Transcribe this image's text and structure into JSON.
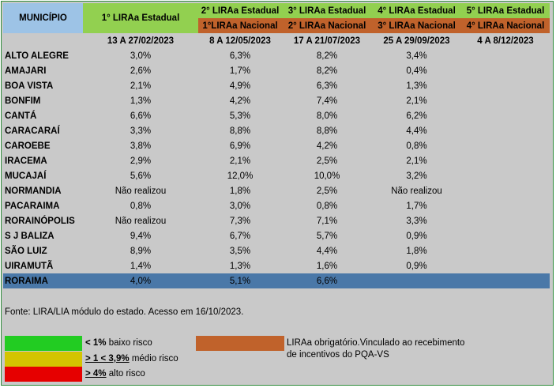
{
  "header": {
    "municipio": "MUNICÍPIO",
    "cycles": [
      {
        "estadual": "1° LIRAa Estadual",
        "nacional": "",
        "date": "13 A 27/02/2023"
      },
      {
        "estadual": "2° LIRAa Estadual",
        "nacional": "1°LIRAa Nacional",
        "date": "8 A 12/05/2023"
      },
      {
        "estadual": "3° LIRAa Estadual",
        "nacional": "2° LIRAa Nacional",
        "date": "17 A 21/07/2023"
      },
      {
        "estadual": "4° LIRAa Estadual",
        "nacional": "3° LIRAa Nacional",
        "date": "25 A 29/09/2023"
      },
      {
        "estadual": "5° LIRAa Estadual",
        "nacional": "4° LIRAa Nacional",
        "date": "4 A 8/12/2023"
      }
    ]
  },
  "rows": [
    {
      "name": "ALTO ALEGRE",
      "values": [
        "3,0%",
        "6,3%",
        "8,2%",
        "3,4%",
        ""
      ]
    },
    {
      "name": "AMAJARI",
      "values": [
        "2,6%",
        "1,7%",
        "8,2%",
        "0,4%",
        ""
      ]
    },
    {
      "name": "BOA VISTA",
      "values": [
        "2,1%",
        "4,9%",
        "6,3%",
        "1,3%",
        ""
      ]
    },
    {
      "name": "BONFIM",
      "values": [
        "1,3%",
        "4,2%",
        "7,4%",
        "2,1%",
        ""
      ]
    },
    {
      "name": "CANTÁ",
      "values": [
        "6,6%",
        "5,3%",
        "8,0%",
        "6,2%",
        ""
      ]
    },
    {
      "name": "CARACARAÍ",
      "values": [
        "3,3%",
        "8,8%",
        "8,8%",
        "4,4%",
        ""
      ]
    },
    {
      "name": "CAROEBE",
      "values": [
        "3,8%",
        "6,9%",
        "4,2%",
        "0,8%",
        ""
      ]
    },
    {
      "name": "IRACEMA",
      "values": [
        "2,9%",
        "2,1%",
        "2,5%",
        "2,1%",
        ""
      ]
    },
    {
      "name": "MUCAJAÍ",
      "values": [
        "5,6%",
        "12,0%",
        "10,0%",
        "3,2%",
        ""
      ]
    },
    {
      "name": "NORMANDIA",
      "values": [
        "Não realizou",
        "1,8%",
        "2,5%",
        "Não realizou",
        ""
      ]
    },
    {
      "name": "PACARAIMA",
      "values": [
        "0,8%",
        "3,0%",
        "0,8%",
        "1,7%",
        ""
      ]
    },
    {
      "name": "RORAINÓPOLIS",
      "values": [
        "Não realizou",
        "7,3%",
        "7,1%",
        "3,3%",
        ""
      ]
    },
    {
      "name": "S J BALIZA",
      "values": [
        "9,4%",
        "6,7%",
        "5,7%",
        "0,9%",
        ""
      ]
    },
    {
      "name": "SÃO LUIZ",
      "values": [
        "8,9%",
        "3,5%",
        "4,4%",
        "1,8%",
        ""
      ]
    },
    {
      "name": "UIRAMUTÃ",
      "values": [
        "1,4%",
        "1,3%",
        "1,6%",
        "0,9%",
        ""
      ]
    }
  ],
  "total": {
    "name": "RORAIMA",
    "values": [
      "4,0%",
      "5,1%",
      "6,6%",
      "",
      ""
    ]
  },
  "fonte": "Fonte: LIRA/LIA módulo do estado. Acesso em 16/10/2023.",
  "legend": {
    "low_prefix": "< 1%",
    "low_text": " baixo risco",
    "mid_prefix": "> 1 < 3,9%",
    "mid_text": " médio risco",
    "high_prefix": "> 4%",
    "high_text": "  alto risco",
    "obrigatorio_text": "LIRAa obrigatório.Vinculado ao recebimento de incentivos do PQA-VS"
  },
  "colors": {
    "header_municipio": "#9dc3e6",
    "estadual": "#92d050",
    "nacional": "#c0622b",
    "total_row": "#4a78a8",
    "low": "#22cc22",
    "mid": "#d4c400",
    "high": "#e60000"
  }
}
